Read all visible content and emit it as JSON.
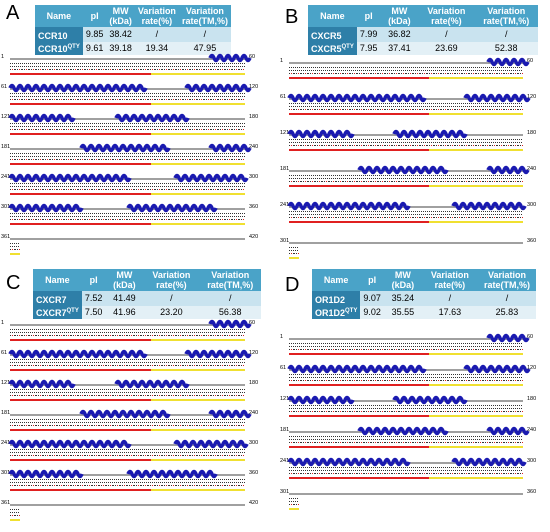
{
  "panels": [
    {
      "label": "A",
      "headers": [
        "Name",
        "pI",
        "MW (kDa)",
        "Variation rate(%)",
        "Variation rate(TM,%)"
      ],
      "rows": [
        {
          "name": "CCR10",
          "sup": "",
          "pi": "9.85",
          "mw": "38.42",
          "vr": "/",
          "vrtm": "/"
        },
        {
          "name": "CCR10",
          "sup": "QTY",
          "pi": "9.61",
          "mw": "39.18",
          "vr": "19.34",
          "vrtm": "47.95"
        }
      ],
      "row_numbers": [
        "1",
        "61",
        "121",
        "181",
        "241",
        "301",
        "361"
      ],
      "end_numbers": [
        "60",
        "120",
        "180",
        "240",
        "300",
        "360",
        "420"
      ]
    },
    {
      "label": "B",
      "headers": [
        "Name",
        "pI",
        "MW (kDa)",
        "Variation rate(%)",
        "Variation rate(TM,%)"
      ],
      "rows": [
        {
          "name": "CXCR5",
          "sup": "",
          "pi": "7.99",
          "mw": "36.82",
          "vr": "/",
          "vrtm": "/"
        },
        {
          "name": "CXCR5",
          "sup": "QTY",
          "pi": "7.95",
          "mw": "37.41",
          "vr": "23.69",
          "vrtm": "52.38"
        }
      ],
      "row_numbers": [
        "1",
        "61",
        "121",
        "181",
        "241",
        "301"
      ],
      "end_numbers": [
        "60",
        "120",
        "180",
        "240",
        "300",
        "360"
      ]
    },
    {
      "label": "C",
      "headers": [
        "Name",
        "pI",
        "MW (kDa)",
        "Variation rate(%)",
        "Variation rate(TM,%)"
      ],
      "rows": [
        {
          "name": "CXCR7",
          "sup": "",
          "pi": "7.52",
          "mw": "41.49",
          "vr": "/",
          "vrtm": "/"
        },
        {
          "name": "CXCR7",
          "sup": "QTY",
          "pi": "7.50",
          "mw": "41.96",
          "vr": "23.20",
          "vrtm": "56.38"
        }
      ],
      "row_numbers": [
        "1",
        "61",
        "121",
        "181",
        "241",
        "301",
        "361"
      ],
      "end_numbers": [
        "60",
        "120",
        "180",
        "240",
        "300",
        "360",
        "420"
      ]
    },
    {
      "label": "D",
      "headers": [
        "Name",
        "pI",
        "MW (kDa)",
        "Variation rate(%)",
        "Variation rate(TM,%)"
      ],
      "rows": [
        {
          "name": "OR1D2",
          "sup": "",
          "pi": "9.07",
          "mw": "35.24",
          "vr": "/",
          "vrtm": "/"
        },
        {
          "name": "OR1D2",
          "sup": "QTY",
          "pi": "9.02",
          "mw": "35.55",
          "vr": "17.63",
          "vrtm": "25.83"
        }
      ],
      "row_numbers": [
        "1",
        "61",
        "121",
        "181",
        "241",
        "301"
      ],
      "end_numbers": [
        "60",
        "120",
        "180",
        "240",
        "300",
        "360"
      ]
    }
  ]
}
